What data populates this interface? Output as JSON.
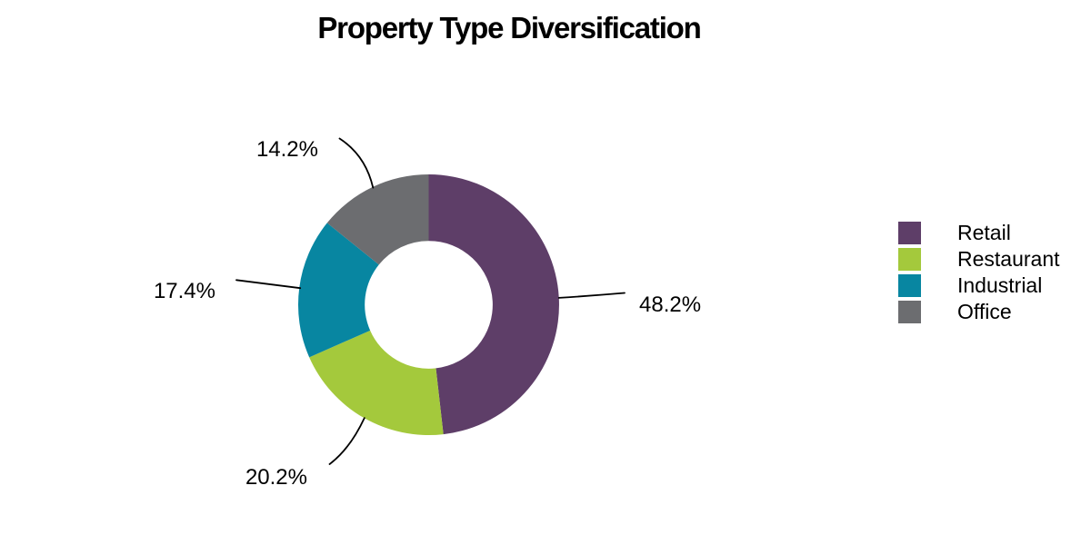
{
  "chart_data": {
    "type": "pie",
    "subtype": "donut",
    "title": "Property Type Diversification",
    "series": [
      {
        "label": "Retail",
        "value": 48.2,
        "display": "48.2%",
        "color": "#5E3E68"
      },
      {
        "label": "Restaurant",
        "value": 20.2,
        "display": "20.2%",
        "color": "#A4C93C"
      },
      {
        "label": "Industrial",
        "value": 17.4,
        "display": "17.4%",
        "color": "#0886A1"
      },
      {
        "label": "Office",
        "value": 14.2,
        "display": "14.2%",
        "color": "#6C6D70"
      }
    ],
    "total": 100,
    "start_angle_deg": 0,
    "direction": "clockwise",
    "inner_radius_ratio": 0.49,
    "legend_position": "right",
    "background_color": "#FFFFFF",
    "text_color": "#000000",
    "leader_line_color": "#000000"
  }
}
